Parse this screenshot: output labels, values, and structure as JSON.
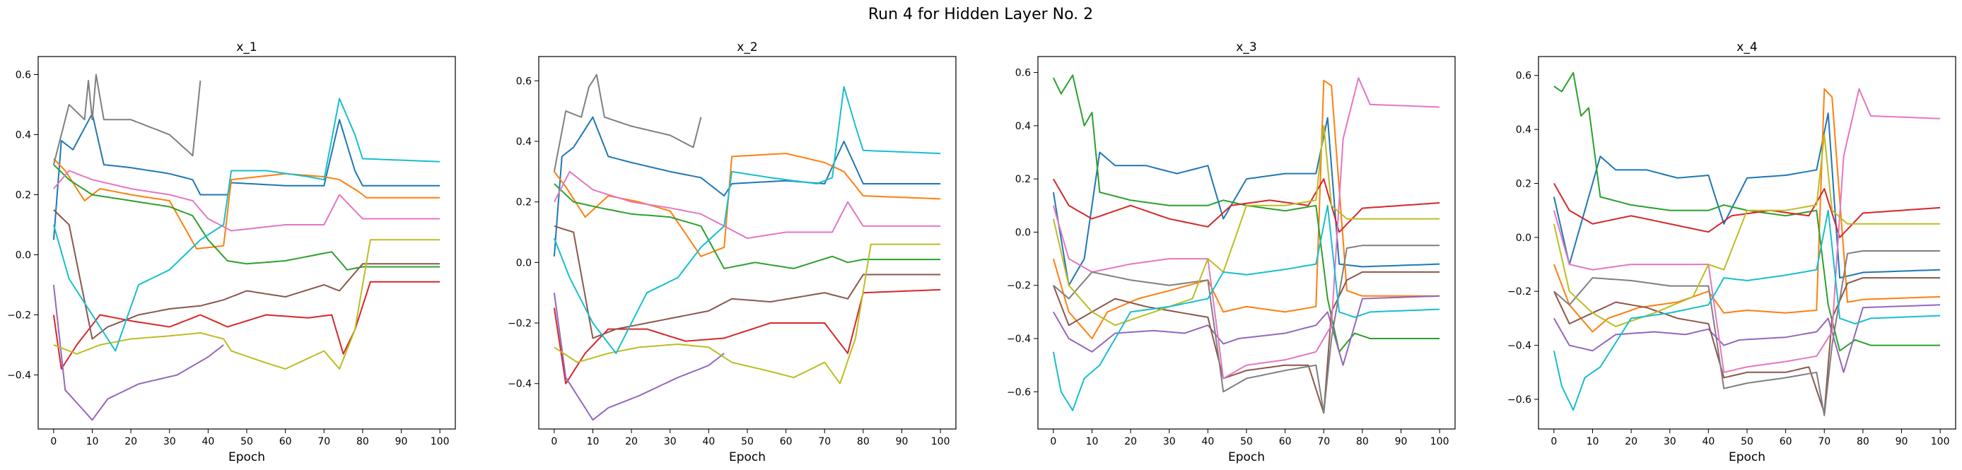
{
  "figure": {
    "suptitle": "Run 4 for Hidden Layer No. 2"
  },
  "series_colors": [
    "#1f77b4",
    "#ff7f0e",
    "#2ca02c",
    "#d62728",
    "#9467bd",
    "#8c564b",
    "#e377c2",
    "#7f7f7f",
    "#bcbd22",
    "#17becf"
  ],
  "chart_data": [
    {
      "type": "line",
      "title": "x_1",
      "xlabel": "Epoch",
      "ylabel": "",
      "xlim": [
        -4,
        104
      ],
      "ylim": [
        -0.58,
        0.66
      ],
      "xticks": [
        0,
        10,
        20,
        30,
        40,
        50,
        60,
        70,
        80,
        90,
        100
      ],
      "yticks": [
        -0.4,
        -0.2,
        0.0,
        0.2,
        0.4,
        0.6
      ],
      "ytick_labels": [
        "−0.4",
        "−0.2",
        "0.0",
        "0.2",
        "0.4",
        "0.6"
      ],
      "grid": false,
      "series": [
        {
          "values": {
            "0": 0.05,
            "2": 0.38,
            "5": 0.35,
            "10": 0.47,
            "13": 0.3,
            "20": 0.29,
            "30": 0.27,
            "36": 0.25,
            "38": 0.2,
            "45": 0.2,
            "46": 0.24,
            "60": 0.23,
            "70": 0.23,
            "74": 0.45,
            "78": 0.28,
            "80": 0.23,
            "100": 0.23
          }
        },
        {
          "values": {
            "0": 0.32,
            "3": 0.28,
            "8": 0.18,
            "12": 0.22,
            "20": 0.2,
            "30": 0.18,
            "37": 0.02,
            "44": 0.03,
            "46": 0.25,
            "60": 0.27,
            "70": 0.26,
            "74": 0.25,
            "79": 0.21,
            "81": 0.19,
            "100": 0.19
          }
        },
        {
          "values": {
            "0": 0.3,
            "4": 0.25,
            "10": 0.2,
            "20": 0.18,
            "30": 0.16,
            "36": 0.13,
            "40": 0.05,
            "45": -0.02,
            "50": -0.03,
            "60": -0.02,
            "72": 0.01,
            "76": -0.05,
            "80": -0.04,
            "100": -0.04
          }
        },
        {
          "values": {
            "0": -0.2,
            "2": -0.38,
            "6": -0.3,
            "12": -0.2,
            "20": -0.22,
            "30": -0.24,
            "38": -0.2,
            "45": -0.24,
            "55": -0.2,
            "66": -0.21,
            "72": -0.2,
            "75": -0.33,
            "78": -0.25,
            "82": -0.09,
            "100": -0.09
          }
        },
        {
          "values": {
            "0": -0.1,
            "3": -0.45,
            "10": -0.55,
            "14": -0.48,
            "22": -0.43,
            "32": -0.4,
            "40": -0.34,
            "44": -0.3
          }
        },
        {
          "values": {
            "0": 0.15,
            "4": 0.1,
            "10": -0.28,
            "14": -0.24,
            "22": -0.2,
            "30": -0.18,
            "38": -0.17,
            "44": -0.15,
            "50": -0.12,
            "60": -0.14,
            "70": -0.1,
            "74": -0.12,
            "80": -0.03,
            "100": -0.03
          }
        },
        {
          "values": {
            "0": 0.22,
            "4": 0.28,
            "10": 0.25,
            "20": 0.22,
            "30": 0.2,
            "36": 0.18,
            "40": 0.12,
            "46": 0.08,
            "60": 0.1,
            "70": 0.1,
            "74": 0.2,
            "80": 0.12,
            "100": 0.12
          }
        },
        {
          "values": {
            "0": 0.3,
            "4": 0.5,
            "8": 0.45,
            "9": 0.58,
            "10": 0.45,
            "11": 0.6,
            "13": 0.45,
            "20": 0.45,
            "30": 0.4,
            "36": 0.33,
            "38": 0.58
          }
        },
        {
          "values": {
            "0": -0.3,
            "6": -0.33,
            "12": -0.3,
            "20": -0.28,
            "30": -0.27,
            "38": -0.26,
            "44": -0.28,
            "46": -0.32,
            "55": -0.36,
            "60": -0.38,
            "70": -0.32,
            "74": -0.38,
            "78": -0.25,
            "82": 0.05,
            "100": 0.05
          }
        },
        {
          "values": {
            "0": 0.1,
            "4": -0.08,
            "10": -0.2,
            "16": -0.32,
            "22": -0.1,
            "30": -0.05,
            "38": 0.05,
            "44": 0.1,
            "46": 0.28,
            "55": 0.28,
            "66": 0.26,
            "70": 0.25,
            "74": 0.52,
            "78": 0.4,
            "80": 0.32,
            "100": 0.31
          }
        }
      ]
    },
    {
      "type": "line",
      "title": "x_2",
      "xlabel": "Epoch",
      "ylabel": "",
      "xlim": [
        -4,
        104
      ],
      "ylim": [
        -0.55,
        0.68
      ],
      "xticks": [
        0,
        10,
        20,
        30,
        40,
        50,
        60,
        70,
        80,
        90,
        100
      ],
      "yticks": [
        -0.4,
        -0.2,
        0.0,
        0.2,
        0.4,
        0.6
      ],
      "ytick_labels": [
        "−0.4",
        "−0.2",
        "0.0",
        "0.2",
        "0.4",
        "0.6"
      ],
      "grid": false,
      "series": [
        {
          "values": {
            "0": 0.02,
            "2": 0.35,
            "5": 0.38,
            "10": 0.48,
            "14": 0.35,
            "20": 0.33,
            "30": 0.3,
            "38": 0.28,
            "44": 0.22,
            "46": 0.26,
            "60": 0.27,
            "70": 0.26,
            "75": 0.4,
            "80": 0.26,
            "100": 0.26
          }
        },
        {
          "values": {
            "0": 0.3,
            "3": 0.25,
            "8": 0.15,
            "14": 0.22,
            "22": 0.2,
            "30": 0.17,
            "38": 0.02,
            "44": 0.05,
            "46": 0.35,
            "60": 0.36,
            "70": 0.33,
            "75": 0.3,
            "80": 0.22,
            "100": 0.21
          }
        },
        {
          "values": {
            "0": 0.26,
            "5": 0.2,
            "12": 0.18,
            "20": 0.16,
            "30": 0.15,
            "38": 0.12,
            "44": -0.02,
            "52": 0.0,
            "62": -0.02,
            "72": 0.02,
            "76": 0.0,
            "80": 0.01,
            "100": 0.01
          }
        },
        {
          "values": {
            "0": -0.15,
            "3": -0.4,
            "8": -0.3,
            "14": -0.22,
            "24": -0.22,
            "34": -0.26,
            "44": -0.25,
            "56": -0.2,
            "70": -0.2,
            "76": -0.3,
            "80": -0.1,
            "100": -0.09
          }
        },
        {
          "values": {
            "0": -0.1,
            "3": -0.38,
            "10": -0.52,
            "14": -0.48,
            "22": -0.44,
            "32": -0.38,
            "40": -0.34,
            "44": -0.3
          }
        },
        {
          "values": {
            "0": 0.12,
            "5": 0.1,
            "10": -0.25,
            "16": -0.22,
            "24": -0.2,
            "32": -0.18,
            "40": -0.16,
            "46": -0.12,
            "56": -0.13,
            "70": -0.1,
            "76": -0.12,
            "80": -0.04,
            "100": -0.04
          }
        },
        {
          "values": {
            "0": 0.2,
            "4": 0.3,
            "10": 0.24,
            "20": 0.2,
            "30": 0.18,
            "38": 0.16,
            "44": 0.12,
            "50": 0.08,
            "60": 0.1,
            "72": 0.1,
            "76": 0.2,
            "80": 0.12,
            "100": 0.12
          }
        },
        {
          "values": {
            "0": 0.3,
            "3": 0.5,
            "7": 0.48,
            "9": 0.58,
            "11": 0.62,
            "13": 0.48,
            "20": 0.45,
            "30": 0.42,
            "36": 0.38,
            "38": 0.48
          }
        },
        {
          "values": {
            "0": -0.28,
            "6": -0.33,
            "14": -0.3,
            "22": -0.28,
            "32": -0.27,
            "40": -0.28,
            "46": -0.33,
            "56": -0.36,
            "62": -0.38,
            "70": -0.33,
            "74": -0.4,
            "78": -0.25,
            "82": 0.06,
            "100": 0.06
          }
        },
        {
          "values": {
            "0": 0.08,
            "4": -0.05,
            "10": -0.2,
            "16": -0.3,
            "24": -0.1,
            "32": -0.05,
            "38": 0.05,
            "44": 0.12,
            "46": 0.3,
            "56": 0.28,
            "68": 0.26,
            "72": 0.28,
            "75": 0.58,
            "78": 0.45,
            "80": 0.37,
            "100": 0.36
          }
        }
      ]
    },
    {
      "type": "line",
      "title": "x_3",
      "xlabel": "Epoch",
      "ylabel": "",
      "xlim": [
        -4,
        104
      ],
      "ylim": [
        -0.74,
        0.66
      ],
      "xticks": [
        0,
        10,
        20,
        30,
        40,
        50,
        60,
        70,
        80,
        90,
        100
      ],
      "yticks": [
        -0.6,
        -0.4,
        -0.2,
        0.0,
        0.2,
        0.4,
        0.6
      ],
      "ytick_labels": [
        "−0.6",
        "−0.4",
        "−0.2",
        "0.0",
        "0.2",
        "0.4",
        "0.6"
      ],
      "grid": false,
      "series": [
        {
          "values": {
            "0": 0.15,
            "4": -0.2,
            "8": -0.1,
            "12": 0.3,
            "16": 0.25,
            "24": 0.25,
            "32": 0.22,
            "40": 0.25,
            "44": 0.05,
            "50": 0.2,
            "60": 0.22,
            "68": 0.22,
            "71": 0.43,
            "74": -0.12,
            "80": -0.13,
            "100": -0.12
          }
        },
        {
          "values": {
            "0": -0.1,
            "4": -0.3,
            "10": -0.4,
            "14": -0.3,
            "22": -0.25,
            "30": -0.22,
            "40": -0.18,
            "44": -0.3,
            "50": -0.28,
            "60": -0.3,
            "68": -0.28,
            "70": 0.57,
            "72": 0.55,
            "76": -0.22,
            "80": -0.24,
            "100": -0.24
          }
        },
        {
          "values": {
            "0": 0.58,
            "2": 0.52,
            "5": 0.59,
            "8": 0.4,
            "10": 0.45,
            "12": 0.15,
            "20": 0.12,
            "30": 0.1,
            "40": 0.1,
            "44": 0.12,
            "50": 0.1,
            "60": 0.08,
            "68": 0.1,
            "71": -0.25,
            "74": -0.45,
            "78": -0.38,
            "82": -0.4,
            "100": -0.4
          }
        },
        {
          "values": {
            "0": 0.2,
            "4": 0.1,
            "10": 0.05,
            "20": 0.1,
            "30": 0.05,
            "40": 0.02,
            "46": 0.1,
            "56": 0.12,
            "66": 0.1,
            "70": 0.2,
            "74": 0.0,
            "80": 0.09,
            "100": 0.11
          }
        },
        {
          "values": {
            "0": -0.3,
            "4": -0.4,
            "10": -0.45,
            "16": -0.38,
            "26": -0.37,
            "34": -0.38,
            "40": -0.35,
            "44": -0.42,
            "48": -0.4,
            "60": -0.38,
            "68": -0.35,
            "71": -0.3,
            "75": -0.5,
            "80": -0.25,
            "100": -0.24
          }
        },
        {
          "values": {
            "0": -0.2,
            "4": -0.35,
            "10": -0.3,
            "16": -0.25,
            "24": -0.28,
            "32": -0.3,
            "40": -0.32,
            "44": -0.55,
            "50": -0.52,
            "60": -0.5,
            "66": -0.5,
            "70": -0.68,
            "72": -0.3,
            "76": -0.18,
            "80": -0.15,
            "100": -0.15
          }
        },
        {
          "values": {
            "0": 0.1,
            "4": -0.1,
            "10": -0.15,
            "20": -0.12,
            "30": -0.1,
            "40": -0.1,
            "44": -0.55,
            "50": -0.5,
            "60": -0.48,
            "68": -0.45,
            "72": -0.35,
            "75": 0.35,
            "79": 0.58,
            "82": 0.48,
            "100": 0.47
          }
        },
        {
          "values": {
            "0": -0.2,
            "4": -0.25,
            "10": -0.15,
            "20": -0.18,
            "30": -0.2,
            "40": -0.18,
            "44": -0.6,
            "50": -0.55,
            "60": -0.52,
            "68": -0.5,
            "70": -0.68,
            "72": -0.4,
            "76": -0.06,
            "80": -0.05,
            "100": -0.05
          }
        },
        {
          "values": {
            "0": 0.05,
            "4": -0.2,
            "10": -0.3,
            "16": -0.35,
            "26": -0.3,
            "36": -0.25,
            "40": -0.1,
            "44": -0.15,
            "50": 0.1,
            "60": 0.1,
            "68": 0.12,
            "70": 0.4,
            "72": 0.1,
            "76": 0.05,
            "80": 0.05,
            "100": 0.05
          }
        },
        {
          "values": {
            "0": -0.45,
            "2": -0.6,
            "5": -0.67,
            "8": -0.55,
            "12": -0.5,
            "20": -0.3,
            "30": -0.28,
            "40": -0.25,
            "44": -0.15,
            "50": -0.16,
            "60": -0.14,
            "68": -0.12,
            "71": 0.1,
            "74": -0.3,
            "78": -0.32,
            "82": -0.3,
            "100": -0.29
          }
        }
      ]
    },
    {
      "type": "line",
      "title": "x_4",
      "xlabel": "Epoch",
      "ylabel": "",
      "xlim": [
        -4,
        104
      ],
      "ylim": [
        -0.71,
        0.67
      ],
      "xticks": [
        0,
        10,
        20,
        30,
        40,
        50,
        60,
        70,
        80,
        90,
        100
      ],
      "yticks": [
        -0.6,
        -0.4,
        -0.2,
        0.0,
        0.2,
        0.4,
        0.6
      ],
      "ytick_labels": [
        "−0.6",
        "−0.4",
        "−0.2",
        "0.0",
        "0.2",
        "0.4",
        "0.6"
      ],
      "grid": false,
      "series": [
        {
          "values": {
            "0": 0.15,
            "4": -0.1,
            "8": 0.1,
            "12": 0.3,
            "16": 0.25,
            "24": 0.25,
            "32": 0.22,
            "40": 0.23,
            "44": 0.05,
            "50": 0.22,
            "60": 0.23,
            "68": 0.25,
            "71": 0.46,
            "74": -0.15,
            "80": -0.13,
            "100": -0.12
          }
        },
        {
          "values": {
            "0": -0.1,
            "4": -0.25,
            "10": -0.35,
            "14": -0.3,
            "22": -0.26,
            "32": -0.24,
            "40": -0.2,
            "44": -0.28,
            "50": -0.27,
            "60": -0.28,
            "68": -0.27,
            "70": 0.55,
            "72": 0.52,
            "76": -0.24,
            "80": -0.23,
            "100": -0.22
          }
        },
        {
          "values": {
            "0": 0.56,
            "2": 0.54,
            "5": 0.61,
            "7": 0.45,
            "9": 0.48,
            "12": 0.15,
            "20": 0.12,
            "30": 0.1,
            "40": 0.1,
            "44": 0.12,
            "50": 0.1,
            "60": 0.08,
            "68": 0.1,
            "71": -0.25,
            "74": -0.42,
            "78": -0.38,
            "82": -0.4,
            "100": -0.4
          }
        },
        {
          "values": {
            "0": 0.2,
            "4": 0.1,
            "10": 0.05,
            "20": 0.08,
            "30": 0.05,
            "40": 0.02,
            "46": 0.08,
            "56": 0.1,
            "66": 0.08,
            "70": 0.18,
            "74": 0.0,
            "80": 0.09,
            "100": 0.11
          }
        },
        {
          "values": {
            "0": -0.3,
            "4": -0.4,
            "10": -0.42,
            "16": -0.36,
            "26": -0.35,
            "34": -0.36,
            "40": -0.34,
            "44": -0.4,
            "48": -0.38,
            "60": -0.37,
            "68": -0.35,
            "71": -0.3,
            "75": -0.5,
            "80": -0.26,
            "100": -0.25
          }
        },
        {
          "values": {
            "0": -0.2,
            "4": -0.32,
            "10": -0.28,
            "16": -0.24,
            "24": -0.26,
            "32": -0.3,
            "40": -0.32,
            "44": -0.52,
            "50": -0.5,
            "60": -0.5,
            "66": -0.48,
            "70": -0.65,
            "72": -0.3,
            "76": -0.17,
            "80": -0.15,
            "100": -0.15
          }
        },
        {
          "values": {
            "0": 0.1,
            "4": -0.1,
            "10": -0.12,
            "20": -0.1,
            "30": -0.1,
            "40": -0.1,
            "44": -0.5,
            "50": -0.48,
            "60": -0.46,
            "68": -0.44,
            "72": -0.35,
            "75": 0.3,
            "79": 0.55,
            "82": 0.45,
            "100": 0.44
          }
        },
        {
          "values": {
            "0": -0.2,
            "4": -0.25,
            "10": -0.15,
            "20": -0.16,
            "30": -0.18,
            "40": -0.18,
            "44": -0.56,
            "50": -0.54,
            "60": -0.52,
            "68": -0.5,
            "70": -0.66,
            "72": -0.4,
            "76": -0.06,
            "80": -0.05,
            "100": -0.05
          }
        },
        {
          "values": {
            "0": 0.05,
            "4": -0.2,
            "10": -0.28,
            "16": -0.33,
            "26": -0.28,
            "36": -0.22,
            "40": -0.1,
            "44": -0.12,
            "50": 0.1,
            "60": 0.1,
            "68": 0.12,
            "70": 0.38,
            "72": 0.1,
            "76": 0.05,
            "80": 0.05,
            "100": 0.05
          }
        },
        {
          "values": {
            "0": -0.42,
            "2": -0.55,
            "5": -0.64,
            "8": -0.52,
            "12": -0.48,
            "20": -0.3,
            "30": -0.28,
            "40": -0.25,
            "44": -0.15,
            "50": -0.16,
            "60": -0.14,
            "68": -0.12,
            "71": 0.1,
            "74": -0.3,
            "78": -0.32,
            "82": -0.3,
            "100": -0.29
          }
        }
      ]
    }
  ]
}
